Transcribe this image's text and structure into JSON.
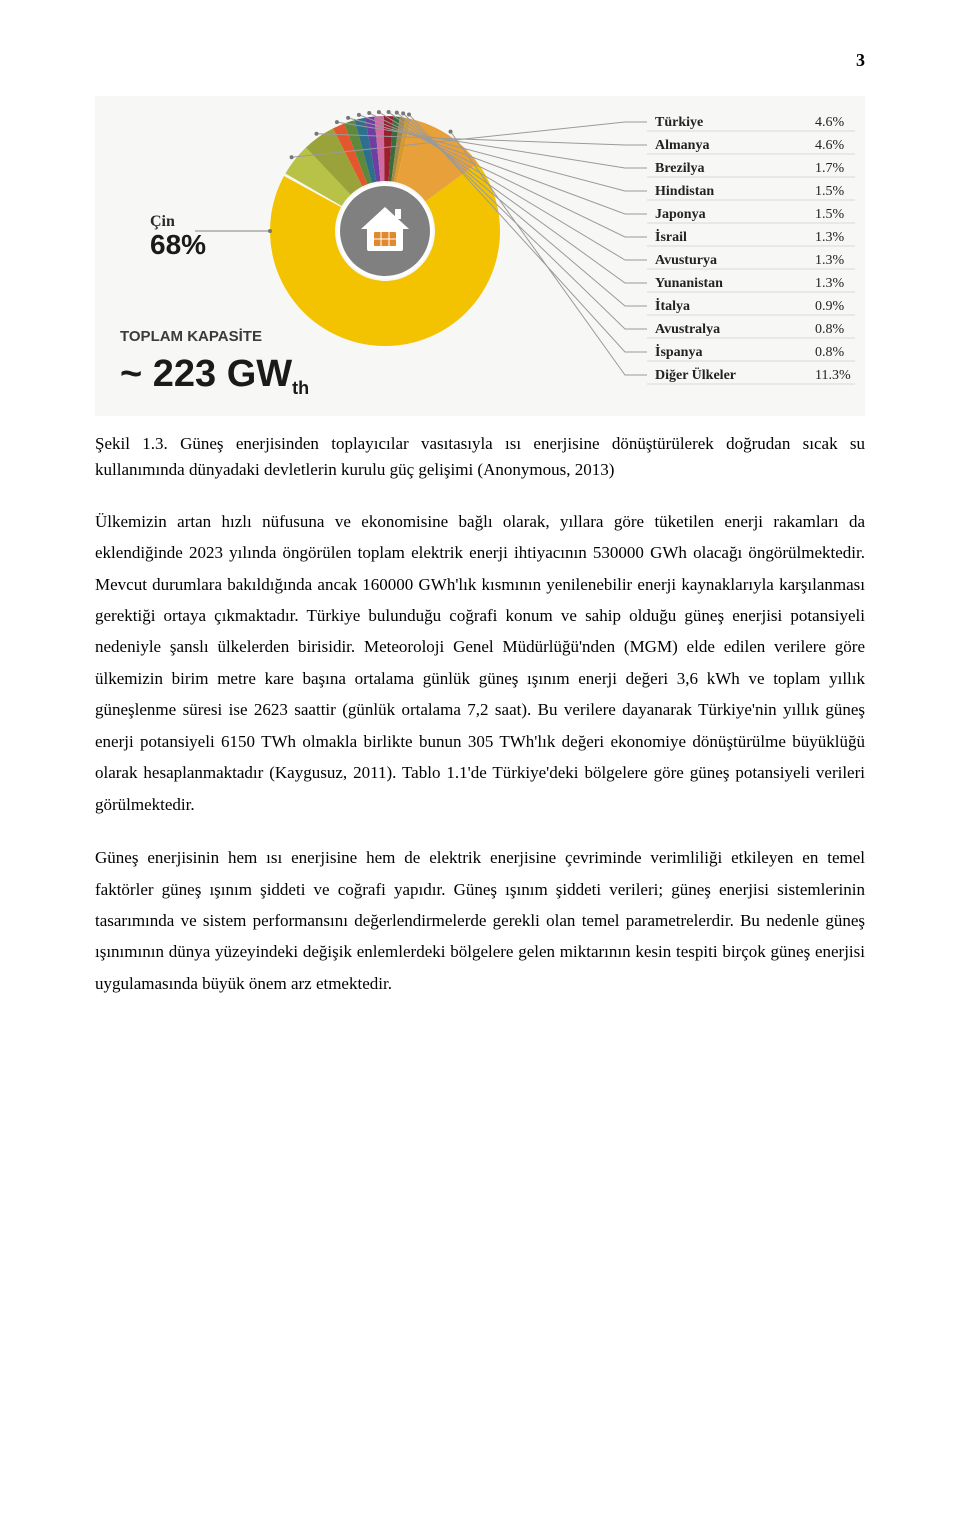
{
  "page_number": "3",
  "chart": {
    "type": "pie",
    "background": "#f7f7f5",
    "center_icon_bg": "#808080",
    "center_icon_panel": "#e08a2d",
    "main_slice": {
      "label": "Çin",
      "pct_label": "68%",
      "color": "#f3c200",
      "label_fontsize": 16,
      "pct_fontsize": 28
    },
    "total_capacity_label": "TOPLAM KAPASİTE",
    "total_value": "~ 223 GW",
    "total_unit_sub": "th",
    "countries": [
      {
        "name": "Türkiye",
        "pct": "4.6%",
        "color": "#b7c246"
      },
      {
        "name": "Almanya",
        "pct": "4.6%",
        "color": "#9aa23a"
      },
      {
        "name": "Brezilya",
        "pct": "1.7%",
        "color": "#e4572e"
      },
      {
        "name": "Hindistan",
        "pct": "1.5%",
        "color": "#5c8a3a"
      },
      {
        "name": "Japonya",
        "pct": "1.5%",
        "color": "#2e6f8e"
      },
      {
        "name": "İsrail",
        "pct": "1.3%",
        "color": "#6e3fa3"
      },
      {
        "name": "Avusturya",
        "pct": "1.3%",
        "color": "#d06aa0"
      },
      {
        "name": "Yunanistan",
        "pct": "1.3%",
        "color": "#9c1f2e"
      },
      {
        "name": "İtalya",
        "pct": "0.9%",
        "color": "#396d3a"
      },
      {
        "name": "Avustralya",
        "pct": "0.8%",
        "color": "#a6894a"
      },
      {
        "name": "İspanya",
        "pct": "0.8%",
        "color": "#d99a2b"
      },
      {
        "name": "Diğer Ülkeler",
        "pct": "11.3%",
        "color": "#e8a13a"
      }
    ],
    "label_fontsize": 14,
    "pct_fontsize": 14,
    "leader_color": "#9a9a9a"
  },
  "caption": "Şekil 1.3. Güneş enerjisinden toplayıcılar vasıtasıyla ısı enerjisine dönüştürülerek doğrudan sıcak su kullanımında dünyadaki devletlerin kurulu güç gelişimi (Anonymous, 2013)",
  "para1": "Ülkemizin artan hızlı nüfusuna ve ekonomisine bağlı olarak, yıllara göre tüketilen enerji rakamları da eklendiğinde 2023 yılında öngörülen toplam elektrik enerji ihtiyacının 530000 GWh olacağı öngörülmektedir. Mevcut durumlara bakıldığında ancak 160000 GWh'lık kısmının yenilenebilir enerji kaynaklarıyla karşılanması gerektiği ortaya çıkmaktadır. Türkiye bulunduğu coğrafi konum ve sahip olduğu güneş enerjisi potansiyeli nedeniyle şanslı ülkelerden birisidir. Meteoroloji Genel Müdürlüğü'nden (MGM) elde edilen verilere göre ülkemizin birim metre kare başına ortalama günlük güneş ışınım enerji değeri 3,6 kWh ve toplam yıllık güneşlenme süresi ise 2623 saattir (günlük ortalama 7,2 saat). Bu verilere dayanarak Türkiye'nin yıllık güneş enerji potansiyeli 6150 TWh olmakla birlikte bunun 305 TWh'lık değeri ekonomiye dönüştürülme büyüklüğü olarak hesaplanmaktadır (Kaygusuz, 2011). Tablo 1.1'de Türkiye'deki bölgelere göre güneş potansiyeli verileri görülmektedir.",
  "para2": "Güneş enerjisinin hem ısı enerjisine hem de elektrik enerjisine çevriminde verimliliği etkileyen en temel faktörler güneş ışınım şiddeti ve coğrafi yapıdır. Güneş ışınım şiddeti verileri; güneş enerjisi sistemlerinin tasarımında ve sistem performansını değerlendirmelerde gerekli olan temel parametrelerdir. Bu nedenle güneş ışınımının dünya yüzeyindeki değişik enlemlerdeki bölgelere gelen miktarının kesin tespiti birçok güneş enerjisi uygulamasında büyük önem arz etmektedir."
}
